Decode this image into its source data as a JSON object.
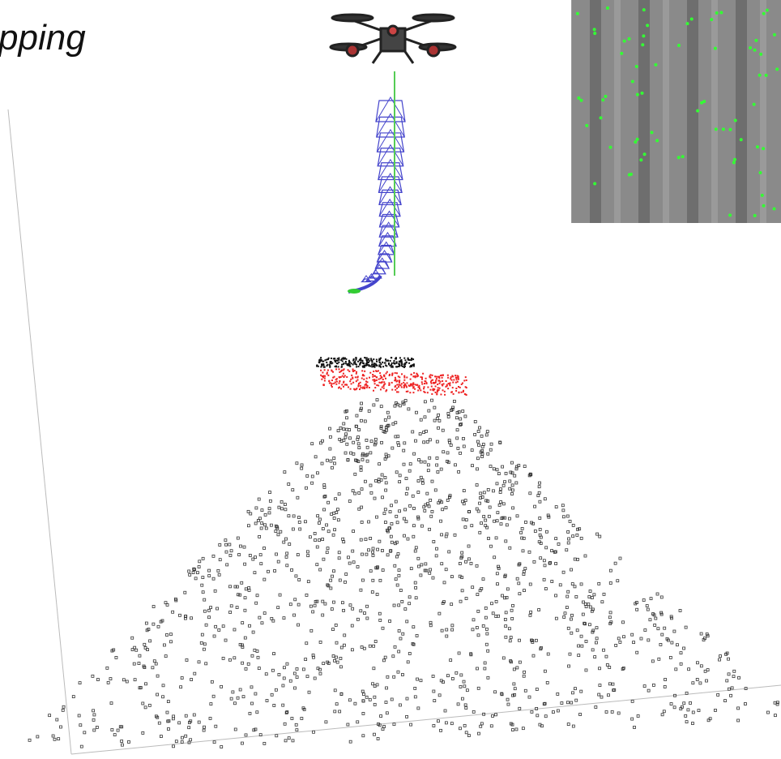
{
  "title": "pping"
}
